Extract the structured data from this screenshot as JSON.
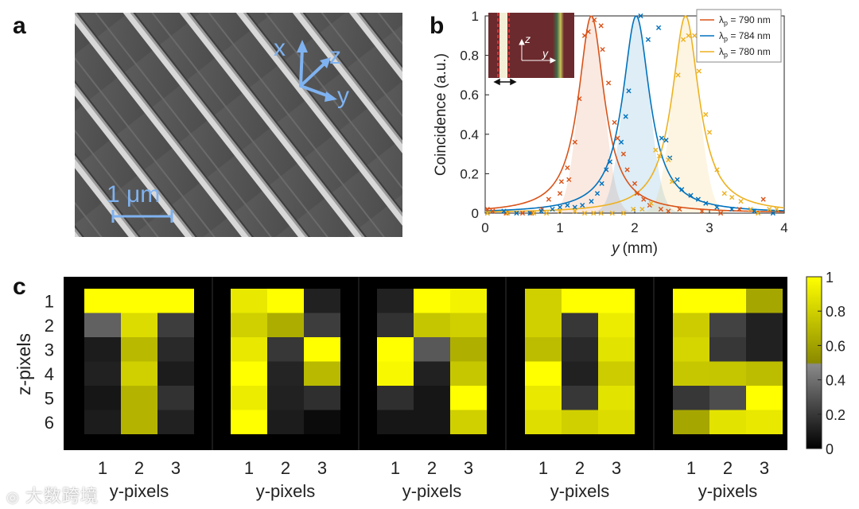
{
  "panels": {
    "a": {
      "label": "a",
      "axes": {
        "x": "x",
        "z": "z",
        "y": "y"
      },
      "scale_bar": "1 μm",
      "accent_color": "#7fb2f0"
    },
    "b": {
      "label": "b",
      "inset_axes": {
        "z": "z",
        "y": "y"
      }
    },
    "c": {
      "label": "c",
      "ylabel": "z-pixels",
      "xlabel_each": "y-pixels",
      "row_labels": [
        "1",
        "2",
        "3",
        "4",
        "5",
        "6"
      ],
      "col_labels": [
        "1",
        "2",
        "3"
      ],
      "colorbar": {
        "ticks": [
          "0",
          "0.2",
          "0.4",
          "0.6",
          "0.8",
          "1"
        ]
      }
    }
  },
  "watermark": "大数跨境",
  "chart_data": [
    {
      "type": "line",
      "panel": "b",
      "title": "",
      "xlabel_italic": "y",
      "xlabel_unit": "(mm)",
      "ylabel": "Coincidence (a.u.)",
      "xlim": [
        0,
        4
      ],
      "ylim": [
        0,
        1
      ],
      "xticks": [
        "0",
        "1",
        "2",
        "3",
        "4"
      ],
      "yticks": [
        "0",
        "0.2",
        "0.4",
        "0.6",
        "0.8",
        "1"
      ],
      "legend_position": "top-right",
      "series": [
        {
          "name": "λp = 790 nm",
          "legend_prefix": "λ",
          "legend_sub": "p",
          "legend_rest": " = 790 nm",
          "color": "#d95319",
          "center": 1.42,
          "width": 0.21,
          "points": [
            [
              0.03,
              0.02
            ],
            [
              0.1,
              0.01
            ],
            [
              0.28,
              0.0
            ],
            [
              0.5,
              0.0
            ],
            [
              0.62,
              0.0
            ],
            [
              0.76,
              0.02
            ],
            [
              0.85,
              0.07
            ],
            [
              1.0,
              0.1
            ],
            [
              1.02,
              0.16
            ],
            [
              1.1,
              0.23
            ],
            [
              1.12,
              0.17
            ],
            [
              1.2,
              0.36
            ],
            [
              1.26,
              0.58
            ],
            [
              1.33,
              0.9
            ],
            [
              1.38,
              0.92
            ],
            [
              1.46,
              0.98
            ],
            [
              1.55,
              0.95
            ],
            [
              1.57,
              0.83
            ],
            [
              1.65,
              0.66
            ],
            [
              1.73,
              0.46
            ],
            [
              1.77,
              0.38
            ],
            [
              1.85,
              0.3
            ],
            [
              1.9,
              0.22
            ],
            [
              2.0,
              0.15
            ],
            [
              2.03,
              0.1
            ],
            [
              2.12,
              0.07
            ],
            [
              2.2,
              0.04
            ],
            [
              2.35,
              0.02
            ],
            [
              2.45,
              0.01
            ],
            [
              2.6,
              0.02
            ],
            [
              2.9,
              0.01
            ],
            [
              3.15,
              0.0
            ],
            [
              3.4,
              0.02
            ],
            [
              3.72,
              0.07
            ]
          ]
        },
        {
          "name": "λp = 784 nm",
          "legend_prefix": "λ",
          "legend_sub": "p",
          "legend_rest": " = 784 nm",
          "color": "#0072bd",
          "center": 2.02,
          "width": 0.22,
          "points": [
            [
              0.03,
              0.0
            ],
            [
              0.25,
              0.01
            ],
            [
              0.42,
              0.0
            ],
            [
              0.6,
              0.0
            ],
            [
              0.75,
              0.01
            ],
            [
              0.9,
              0.02
            ],
            [
              1.0,
              0.03
            ],
            [
              1.1,
              0.04
            ],
            [
              1.2,
              0.03
            ],
            [
              1.3,
              0.04
            ],
            [
              1.42,
              0.06
            ],
            [
              1.5,
              0.1
            ],
            [
              1.56,
              0.15
            ],
            [
              1.62,
              0.22
            ],
            [
              1.67,
              0.26
            ],
            [
              1.82,
              0.36
            ],
            [
              1.88,
              0.49
            ],
            [
              1.92,
              0.62
            ],
            [
              2.08,
              1.0
            ],
            [
              2.18,
              0.88
            ],
            [
              2.32,
              0.94
            ],
            [
              2.36,
              0.38
            ],
            [
              2.42,
              0.37
            ],
            [
              2.47,
              0.28
            ],
            [
              2.57,
              0.17
            ],
            [
              2.63,
              0.12
            ],
            [
              2.75,
              0.09
            ],
            [
              2.85,
              0.07
            ],
            [
              2.95,
              0.05
            ],
            [
              3.1,
              0.03
            ],
            [
              3.3,
              0.02
            ],
            [
              3.6,
              0.01
            ],
            [
              3.85,
              0.0
            ]
          ]
        },
        {
          "name": "λp = 780 nm",
          "legend_prefix": "λ",
          "legend_sub": "p",
          "legend_rest": " = 780 nm",
          "color": "#edb120",
          "center": 2.68,
          "width": 0.22,
          "points": [
            [
              0.03,
              0.0
            ],
            [
              0.3,
              0.0
            ],
            [
              0.65,
              0.0
            ],
            [
              0.82,
              0.0
            ],
            [
              1.0,
              0.01
            ],
            [
              1.2,
              0.01
            ],
            [
              1.33,
              0.0
            ],
            [
              1.45,
              0.0
            ],
            [
              1.55,
              0.0
            ],
            [
              1.7,
              0.0
            ],
            [
              1.85,
              0.0
            ],
            [
              1.98,
              0.02
            ],
            [
              2.1,
              0.02
            ],
            [
              2.22,
              0.05
            ],
            [
              2.28,
              0.32
            ],
            [
              2.33,
              0.29
            ],
            [
              2.45,
              0.27
            ],
            [
              2.5,
              0.16
            ],
            [
              2.58,
              0.7
            ],
            [
              2.65,
              0.88
            ],
            [
              2.72,
              0.9
            ],
            [
              2.8,
              0.9
            ],
            [
              2.86,
              0.72
            ],
            [
              2.95,
              0.5
            ],
            [
              3.0,
              0.41
            ],
            [
              3.1,
              0.22
            ],
            [
              3.2,
              0.1
            ],
            [
              3.3,
              0.08
            ],
            [
              3.42,
              0.06
            ],
            [
              3.55,
              0.02
            ],
            [
              3.65,
              0.0
            ],
            [
              3.8,
              0.02
            ],
            [
              3.9,
              0.02
            ]
          ]
        }
      ]
    },
    {
      "type": "heatmap",
      "panel": "c",
      "rows": 6,
      "cols": 3,
      "matrices": [
        [
          [
            1,
            1,
            1
          ],
          [
            0.35,
            0.85,
            0.22
          ],
          [
            0.1,
            0.7,
            0.15
          ],
          [
            0.12,
            0.8,
            0.1
          ],
          [
            0.08,
            0.68,
            0.18
          ],
          [
            0.1,
            0.68,
            0.12
          ]
        ],
        [
          [
            0.9,
            1,
            0.12
          ],
          [
            0.8,
            0.65,
            0.22
          ],
          [
            0.9,
            0.2,
            1
          ],
          [
            1,
            0.13,
            0.7
          ],
          [
            0.92,
            0.12,
            0.17
          ],
          [
            1,
            0.1,
            0.04
          ]
        ],
        [
          [
            0.12,
            1,
            0.95
          ],
          [
            0.18,
            0.75,
            0.8
          ],
          [
            1,
            0.32,
            0.66
          ],
          [
            0.97,
            0.12,
            0.76
          ],
          [
            0.17,
            0.08,
            1
          ],
          [
            0.08,
            0.08,
            0.8
          ]
        ],
        [
          [
            0.8,
            1,
            1
          ],
          [
            0.8,
            0.2,
            0.92
          ],
          [
            0.72,
            0.15,
            0.88
          ],
          [
            1,
            0.12,
            0.78
          ],
          [
            0.9,
            0.2,
            0.88
          ],
          [
            0.86,
            0.8,
            0.85
          ]
        ],
        [
          [
            1,
            1,
            0.62
          ],
          [
            0.78,
            0.24,
            0.12
          ],
          [
            0.82,
            0.2,
            0.12
          ],
          [
            0.76,
            0.75,
            0.72
          ],
          [
            0.2,
            0.28,
            1
          ],
          [
            0.62,
            0.88,
            0.9
          ]
        ]
      ]
    }
  ]
}
